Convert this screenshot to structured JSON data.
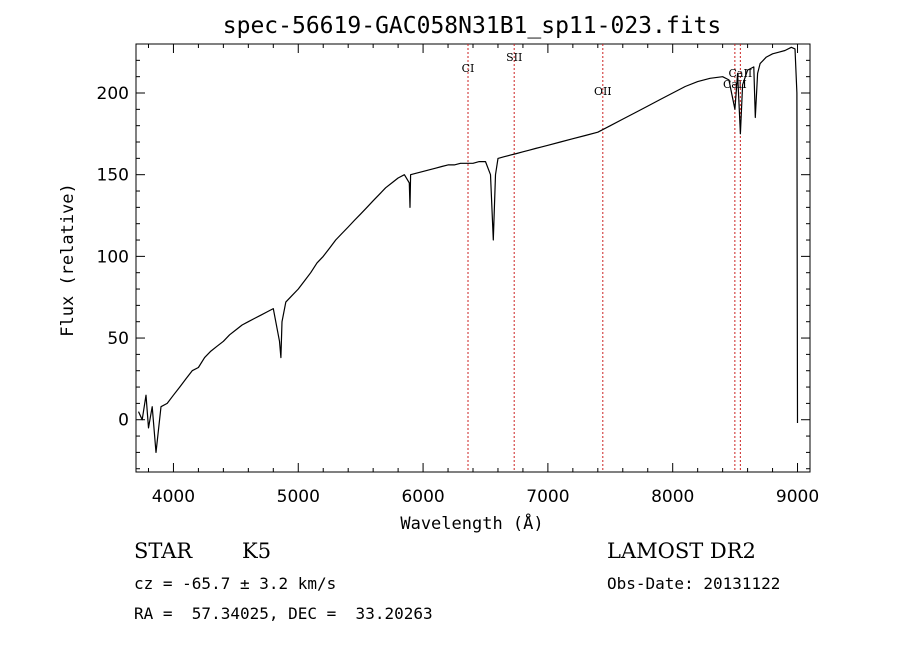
{
  "chart_data": {
    "type": "line",
    "title": "spec-56619-GAC058N31B1_sp11-023.fits",
    "xlabel": "Wavelength (Å)",
    "ylabel": "Flux (relative)",
    "xlim": [
      3700,
      9100
    ],
    "ylim": [
      -32,
      230
    ],
    "xticks": [
      4000,
      5000,
      6000,
      7000,
      8000,
      9000
    ],
    "xtick_labels": [
      "4000",
      "5000",
      "6000",
      "7000",
      "8000",
      "9000"
    ],
    "yticks": [
      0,
      50,
      100,
      150,
      200
    ],
    "ytick_labels": [
      "0",
      "50",
      "100",
      "150",
      "200"
    ],
    "series": [
      {
        "color": "#000000",
        "x": [
          3720,
          3750,
          3780,
          3800,
          3830,
          3860,
          3900,
          3950,
          4000,
          4050,
          4100,
          4150,
          4200,
          4250,
          4300,
          4350,
          4400,
          4450,
          4500,
          4550,
          4600,
          4650,
          4700,
          4750,
          4800,
          4850,
          4861,
          4870,
          4900,
          4950,
          5000,
          5050,
          5100,
          5150,
          5200,
          5250,
          5300,
          5350,
          5400,
          5450,
          5500,
          5550,
          5600,
          5650,
          5700,
          5750,
          5800,
          5850,
          5890,
          5895,
          5900,
          5950,
          6000,
          6050,
          6100,
          6150,
          6200,
          6250,
          6300,
          6350,
          6400,
          6450,
          6500,
          6540,
          6563,
          6580,
          6600,
          6650,
          6700,
          6750,
          6800,
          6850,
          6900,
          6950,
          7000,
          7100,
          7200,
          7300,
          7400,
          7500,
          7600,
          7700,
          7800,
          7900,
          8000,
          8100,
          8200,
          8300,
          8400,
          8450,
          8498,
          8520,
          8542,
          8560,
          8600,
          8650,
          8662,
          8680,
          8700,
          8750,
          8800,
          8850,
          8900,
          8950,
          8980,
          8995,
          9000
        ],
        "y": [
          5,
          0,
          15,
          -5,
          8,
          -20,
          8,
          10,
          15,
          20,
          25,
          30,
          32,
          38,
          42,
          45,
          48,
          52,
          55,
          58,
          60,
          62,
          64,
          66,
          68,
          48,
          38,
          60,
          72,
          76,
          80,
          85,
          90,
          96,
          100,
          105,
          110,
          114,
          118,
          122,
          126,
          130,
          134,
          138,
          142,
          145,
          148,
          150,
          145,
          130,
          150,
          151,
          152,
          153,
          154,
          155,
          156,
          156,
          157,
          157,
          157,
          158,
          158,
          150,
          110,
          150,
          160,
          161,
          162,
          163,
          164,
          165,
          166,
          167,
          168,
          170,
          172,
          174,
          176,
          180,
          184,
          188,
          192,
          196,
          200,
          204,
          207,
          209,
          210,
          208,
          190,
          212,
          175,
          205,
          214,
          216,
          185,
          212,
          218,
          222,
          224,
          225,
          226,
          228,
          227,
          200,
          -2
        ]
      }
    ],
    "line_markers": [
      {
        "label": "CI",
        "x": 6360
      },
      {
        "label": "SII",
        "x": 6730
      },
      {
        "label": "OII",
        "x": 7440
      },
      {
        "label": "CaII",
        "x": 8498
      },
      {
        "label": "CaII",
        "x": 8542
      }
    ],
    "marker_color": "#cc2222"
  },
  "info": {
    "object_class": "STAR",
    "subclass": "K5",
    "survey": "LAMOST DR2",
    "cz": "cz = -65.7 ± 3.2 km/s",
    "obs_date": "Obs-Date: 20131122",
    "coords": "RA =  57.34025, DEC =  33.20263"
  }
}
